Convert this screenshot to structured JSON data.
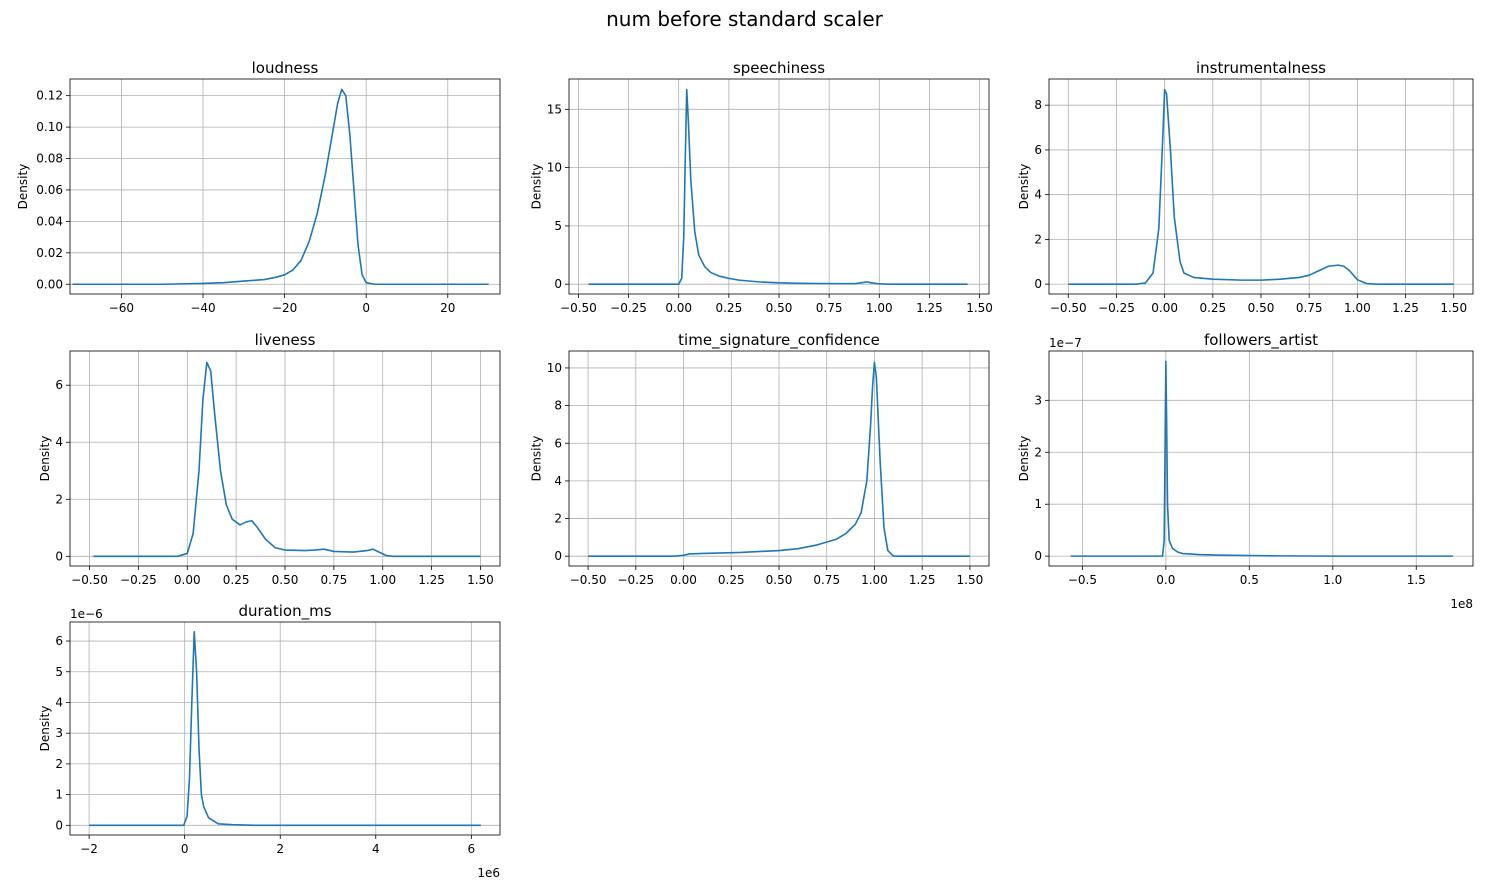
{
  "figure": {
    "title": "num before standard scaler"
  },
  "colors": {
    "line": "#1f77b4",
    "grid": "#b0b0b0",
    "axis": "#000000",
    "background": "#ffffff"
  },
  "chart_data": [
    {
      "type": "line",
      "title": "loudness",
      "xlabel": "",
      "ylabel": "Density",
      "xlim": [
        -72.6,
        32.8
      ],
      "ylim": [
        -0.0062,
        0.1306
      ],
      "xticks": [
        -60,
        -40,
        -20,
        0,
        20
      ],
      "xtick_labels": [
        "−60",
        "−40",
        "−20",
        "0",
        "20"
      ],
      "yticks": [
        0.0,
        0.02,
        0.04,
        0.06,
        0.08,
        0.1,
        0.12
      ],
      "ytick_labels": [
        "0.00",
        "0.02",
        "0.04",
        "0.06",
        "0.08",
        "0.10",
        "0.12"
      ],
      "grid": true,
      "x_offset_label": "",
      "y_offset_label": "",
      "points": [
        [
          -72,
          0
        ],
        [
          -50,
          0
        ],
        [
          -40,
          0.0005
        ],
        [
          -35,
          0.001
        ],
        [
          -30,
          0.002
        ],
        [
          -25,
          0.003
        ],
        [
          -22,
          0.0045
        ],
        [
          -20,
          0.006
        ],
        [
          -18,
          0.009
        ],
        [
          -16,
          0.015
        ],
        [
          -14,
          0.027
        ],
        [
          -12,
          0.045
        ],
        [
          -10,
          0.07
        ],
        [
          -8,
          0.1
        ],
        [
          -7,
          0.115
        ],
        [
          -6,
          0.124
        ],
        [
          -5,
          0.12
        ],
        [
          -4,
          0.095
        ],
        [
          -3,
          0.06
        ],
        [
          -2,
          0.025
        ],
        [
          -1,
          0.006
        ],
        [
          0,
          0.001
        ],
        [
          2,
          0
        ],
        [
          30,
          0
        ]
      ]
    },
    {
      "type": "line",
      "title": "speechiness",
      "xlabel": "",
      "ylabel": "Density",
      "xlim": [
        -0.547,
        1.547
      ],
      "ylim": [
        -0.84,
        17.6
      ],
      "xticks": [
        -0.5,
        -0.25,
        0.0,
        0.25,
        0.5,
        0.75,
        1.0,
        1.25,
        1.5
      ],
      "xtick_labels": [
        "−0.50",
        "−0.25",
        "0.00",
        "0.25",
        "0.50",
        "0.75",
        "1.00",
        "1.25",
        "1.50"
      ],
      "yticks": [
        0,
        5,
        10,
        15
      ],
      "ytick_labels": [
        "0",
        "5",
        "10",
        "15"
      ],
      "grid": true,
      "x_offset_label": "",
      "y_offset_label": "",
      "points": [
        [
          -0.45,
          0
        ],
        [
          0.0,
          0
        ],
        [
          0.015,
          0.5
        ],
        [
          0.025,
          4
        ],
        [
          0.033,
          11
        ],
        [
          0.04,
          16.7
        ],
        [
          0.048,
          14
        ],
        [
          0.06,
          9
        ],
        [
          0.08,
          4.5
        ],
        [
          0.1,
          2.5
        ],
        [
          0.13,
          1.5
        ],
        [
          0.16,
          1.0
        ],
        [
          0.2,
          0.7
        ],
        [
          0.25,
          0.5
        ],
        [
          0.3,
          0.35
        ],
        [
          0.4,
          0.2
        ],
        [
          0.5,
          0.12
        ],
        [
          0.6,
          0.08
        ],
        [
          0.7,
          0.06
        ],
        [
          0.8,
          0.05
        ],
        [
          0.88,
          0.05
        ],
        [
          0.92,
          0.15
        ],
        [
          0.94,
          0.2
        ],
        [
          0.96,
          0.12
        ],
        [
          1.0,
          0.03
        ],
        [
          1.05,
          0
        ],
        [
          1.44,
          0
        ]
      ]
    },
    {
      "type": "line",
      "title": "instrumentalness",
      "xlabel": "",
      "ylabel": "Density",
      "xlim": [
        -0.6,
        1.6
      ],
      "ylim": [
        -0.44,
        9.17
      ],
      "xticks": [
        -0.5,
        -0.25,
        0.0,
        0.25,
        0.5,
        0.75,
        1.0,
        1.25,
        1.5
      ],
      "xtick_labels": [
        "−0.50",
        "−0.25",
        "0.00",
        "0.25",
        "0.50",
        "0.75",
        "1.00",
        "1.25",
        "1.50"
      ],
      "yticks": [
        0,
        2,
        4,
        6,
        8
      ],
      "ytick_labels": [
        "0",
        "2",
        "4",
        "6",
        "8"
      ],
      "grid": true,
      "x_offset_label": "",
      "y_offset_label": "",
      "points": [
        [
          -0.5,
          0
        ],
        [
          -0.15,
          0
        ],
        [
          -0.1,
          0.05
        ],
        [
          -0.06,
          0.5
        ],
        [
          -0.03,
          2.5
        ],
        [
          -0.01,
          6.5
        ],
        [
          0.0,
          8.7
        ],
        [
          0.01,
          8.5
        ],
        [
          0.03,
          6
        ],
        [
          0.05,
          3
        ],
        [
          0.08,
          1
        ],
        [
          0.1,
          0.5
        ],
        [
          0.15,
          0.3
        ],
        [
          0.25,
          0.22
        ],
        [
          0.4,
          0.18
        ],
        [
          0.5,
          0.18
        ],
        [
          0.6,
          0.22
        ],
        [
          0.7,
          0.3
        ],
        [
          0.75,
          0.4
        ],
        [
          0.8,
          0.6
        ],
        [
          0.85,
          0.8
        ],
        [
          0.9,
          0.85
        ],
        [
          0.93,
          0.8
        ],
        [
          0.96,
          0.6
        ],
        [
          1.0,
          0.2
        ],
        [
          1.05,
          0.02
        ],
        [
          1.1,
          0
        ],
        [
          1.5,
          0
        ]
      ]
    },
    {
      "type": "line",
      "title": "liveness",
      "xlabel": "",
      "ylabel": "Density",
      "xlim": [
        -0.6,
        1.6
      ],
      "ylim": [
        -0.34,
        7.2
      ],
      "xticks": [
        -0.5,
        -0.25,
        0.0,
        0.25,
        0.5,
        0.75,
        1.0,
        1.25,
        1.5
      ],
      "xtick_labels": [
        "−0.50",
        "−0.25",
        "0.00",
        "0.25",
        "0.50",
        "0.75",
        "1.00",
        "1.25",
        "1.50"
      ],
      "yticks": [
        0,
        2,
        4,
        6
      ],
      "ytick_labels": [
        "0",
        "2",
        "4",
        "6"
      ],
      "grid": true,
      "x_offset_label": "",
      "y_offset_label": "",
      "points": [
        [
          -0.48,
          0
        ],
        [
          -0.05,
          0
        ],
        [
          0.0,
          0.1
        ],
        [
          0.03,
          0.8
        ],
        [
          0.06,
          3
        ],
        [
          0.08,
          5.5
        ],
        [
          0.1,
          6.8
        ],
        [
          0.12,
          6.5
        ],
        [
          0.14,
          5
        ],
        [
          0.17,
          3
        ],
        [
          0.2,
          1.8
        ],
        [
          0.23,
          1.3
        ],
        [
          0.27,
          1.1
        ],
        [
          0.3,
          1.2
        ],
        [
          0.33,
          1.25
        ],
        [
          0.36,
          1.0
        ],
        [
          0.4,
          0.6
        ],
        [
          0.45,
          0.3
        ],
        [
          0.5,
          0.22
        ],
        [
          0.6,
          0.2
        ],
        [
          0.65,
          0.22
        ],
        [
          0.7,
          0.25
        ],
        [
          0.75,
          0.17
        ],
        [
          0.85,
          0.15
        ],
        [
          0.92,
          0.2
        ],
        [
          0.95,
          0.25
        ],
        [
          0.98,
          0.15
        ],
        [
          1.02,
          0.02
        ],
        [
          1.05,
          0
        ],
        [
          1.5,
          0
        ]
      ]
    },
    {
      "type": "line",
      "title": "time_signature_confidence",
      "xlabel": "",
      "ylabel": "Density",
      "xlim": [
        -0.6,
        1.6
      ],
      "ylim": [
        -0.52,
        10.9
      ],
      "xticks": [
        -0.5,
        -0.25,
        0.0,
        0.25,
        0.5,
        0.75,
        1.0,
        1.25,
        1.5
      ],
      "xtick_labels": [
        "−0.50",
        "−0.25",
        "0.00",
        "0.25",
        "0.50",
        "0.75",
        "1.00",
        "1.25",
        "1.50"
      ],
      "yticks": [
        0,
        2,
        4,
        6,
        8,
        10
      ],
      "ytick_labels": [
        "0",
        "2",
        "4",
        "6",
        "8",
        "10"
      ],
      "grid": true,
      "x_offset_label": "",
      "y_offset_label": "",
      "points": [
        [
          -0.5,
          0
        ],
        [
          -0.05,
          0
        ],
        [
          0.0,
          0.05
        ],
        [
          0.03,
          0.12
        ],
        [
          0.1,
          0.15
        ],
        [
          0.3,
          0.2
        ],
        [
          0.5,
          0.3
        ],
        [
          0.6,
          0.4
        ],
        [
          0.7,
          0.6
        ],
        [
          0.8,
          0.9
        ],
        [
          0.85,
          1.2
        ],
        [
          0.9,
          1.7
        ],
        [
          0.93,
          2.3
        ],
        [
          0.96,
          4
        ],
        [
          0.98,
          7
        ],
        [
          0.99,
          9
        ],
        [
          1.0,
          10.3
        ],
        [
          1.01,
          9.5
        ],
        [
          1.03,
          5
        ],
        [
          1.05,
          1.5
        ],
        [
          1.07,
          0.3
        ],
        [
          1.1,
          0
        ],
        [
          1.5,
          0
        ]
      ]
    },
    {
      "type": "line",
      "title": "followers_artist",
      "xlabel": "",
      "ylabel": "Density",
      "xlim": [
        -0.7,
        1.84
      ],
      "ylim": [
        -0.19,
        3.95
      ],
      "x_scale": 100000000,
      "y_scale": 1e-07,
      "xticks": [
        -0.5,
        0.0,
        0.5,
        1.0,
        1.5
      ],
      "xtick_labels": [
        "−0.5",
        "0.0",
        "0.5",
        "1.0",
        "1.5"
      ],
      "yticks": [
        0,
        1,
        2,
        3
      ],
      "ytick_labels": [
        "0",
        "1",
        "2",
        "3"
      ],
      "grid": true,
      "x_offset_label": "1e8",
      "y_offset_label": "1e−7",
      "points": [
        [
          -0.57,
          0
        ],
        [
          -0.02,
          0
        ],
        [
          -0.01,
          0.3
        ],
        [
          -0.005,
          2
        ],
        [
          0.0,
          3.75
        ],
        [
          0.005,
          2.5
        ],
        [
          0.01,
          1
        ],
        [
          0.02,
          0.3
        ],
        [
          0.04,
          0.15
        ],
        [
          0.07,
          0.08
        ],
        [
          0.1,
          0.05
        ],
        [
          0.15,
          0.04
        ],
        [
          0.2,
          0.03
        ],
        [
          0.3,
          0.02
        ],
        [
          0.5,
          0.01
        ],
        [
          0.7,
          0.005
        ],
        [
          1.0,
          0
        ],
        [
          1.72,
          0
        ]
      ]
    },
    {
      "type": "line",
      "title": "duration_ms",
      "xlabel": "",
      "ylabel": "Density",
      "xlim": [
        -2.4,
        6.6
      ],
      "ylim": [
        -0.315,
        6.62
      ],
      "x_scale": 1000000,
      "y_scale": 1e-06,
      "xticks": [
        -2,
        0,
        2,
        4,
        6
      ],
      "xtick_labels": [
        "−2",
        "0",
        "2",
        "4",
        "6"
      ],
      "yticks": [
        0,
        1,
        2,
        3,
        4,
        5,
        6
      ],
      "ytick_labels": [
        "0",
        "1",
        "2",
        "3",
        "4",
        "5",
        "6"
      ],
      "grid": true,
      "x_offset_label": "1e6",
      "y_offset_label": "1e−6",
      "points": [
        [
          -2.0,
          0
        ],
        [
          -0.02,
          0
        ],
        [
          0.05,
          0.3
        ],
        [
          0.1,
          1.5
        ],
        [
          0.15,
          4
        ],
        [
          0.2,
          6.3
        ],
        [
          0.25,
          5
        ],
        [
          0.3,
          2.5
        ],
        [
          0.35,
          1
        ],
        [
          0.4,
          0.6
        ],
        [
          0.5,
          0.25
        ],
        [
          0.7,
          0.05
        ],
        [
          1.0,
          0.02
        ],
        [
          1.5,
          0
        ],
        [
          6.2,
          0
        ]
      ]
    }
  ]
}
